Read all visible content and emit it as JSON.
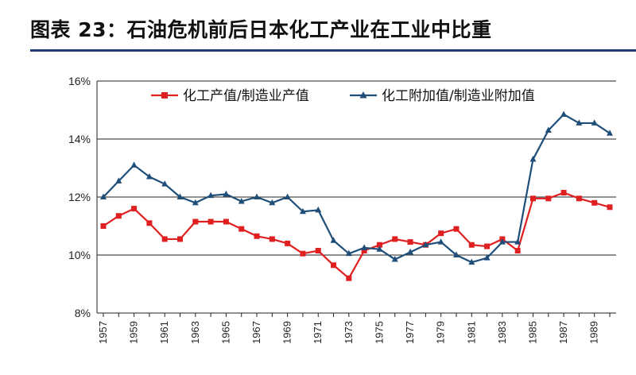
{
  "header": {
    "title": "图表 23：石油危机前后日本化工产业在工业中比重",
    "rule_color": "#1f3d73"
  },
  "chart_data": {
    "type": "line",
    "title": "图表 23：石油危机前后日本化工产业在工业中比重",
    "xlabel": "",
    "ylabel": "",
    "x": [
      1957,
      1958,
      1959,
      1960,
      1961,
      1962,
      1963,
      1964,
      1965,
      1966,
      1967,
      1968,
      1969,
      1970,
      1971,
      1972,
      1973,
      1974,
      1975,
      1976,
      1977,
      1978,
      1979,
      1980,
      1981,
      1982,
      1983,
      1984,
      1985,
      1986,
      1987,
      1988,
      1989,
      1990
    ],
    "x_tick_labels": [
      "1957",
      "1959",
      "1961",
      "1963",
      "1965",
      "1967",
      "1969",
      "1971",
      "1973",
      "1975",
      "1977",
      "1979",
      "1981",
      "1983",
      "1985",
      "1987",
      "1989"
    ],
    "y_tick_labels": [
      "8%",
      "10%",
      "12%",
      "14%",
      "16%"
    ],
    "ylim": [
      8,
      16
    ],
    "grid": "horizontal",
    "legend_position": "top",
    "series": [
      {
        "name": "化工产值/制造业产值",
        "color": "#e02020",
        "marker": "square",
        "values": [
          11.0,
          11.35,
          11.6,
          11.1,
          10.55,
          10.55,
          11.15,
          11.15,
          11.15,
          10.9,
          10.65,
          10.55,
          10.4,
          10.05,
          10.15,
          9.65,
          9.2,
          10.15,
          10.35,
          10.55,
          10.45,
          10.35,
          10.75,
          10.9,
          10.35,
          10.3,
          10.55,
          10.15,
          11.95,
          11.95,
          12.15,
          11.95,
          11.8,
          11.65
        ]
      },
      {
        "name": "化工附加值/制造业附加值",
        "color": "#1f4e79",
        "marker": "triangle",
        "values": [
          12.0,
          12.55,
          13.1,
          12.7,
          12.45,
          12.0,
          11.8,
          12.05,
          12.1,
          11.85,
          12.0,
          11.8,
          12.0,
          11.5,
          11.55,
          10.5,
          10.05,
          10.25,
          10.2,
          9.85,
          10.1,
          10.35,
          10.45,
          10.0,
          9.75,
          9.9,
          10.45,
          10.45,
          13.3,
          14.3,
          14.85,
          14.55,
          14.55,
          14.2
        ]
      }
    ]
  }
}
